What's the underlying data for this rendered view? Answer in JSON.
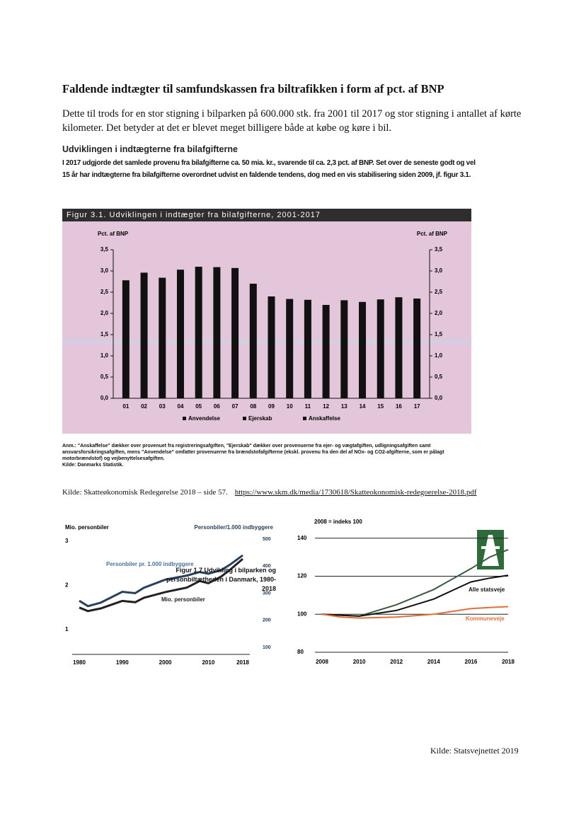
{
  "heading": "Faldende indtægter til samfundskassen fra biltrafikken i form af pct. af BNP",
  "intro": "Dette til trods for en stor stigning i bilparken på 600.000 stk. fra 2001 til 2017 og stor stigning i antallet af kørte kilometer. Det betyder at det er blevet meget billigere både at købe og køre i bil.",
  "subheading": "Udviklingen i indtægterne fra bilafgifterne",
  "body": "I 2017 udgjorde det samlede provenu fra bilafgifterne ca. 50 mia. kr., svarende til ca. 2,3 pct. af BNP. Set over de seneste godt og vel 15 år har indtægterne fra bilafgifterne overordnet udvist en faldende tendens, dog med en vis stabilisering siden 2009, jf. figur 3.1.",
  "figure_note": "Anm.: \"Anskaffelse\" dækker over provenuet fra registreringsafgiften, \"Ejerskab\" dækker over provenuerne fra ejer- og vægtafgiften, udligningsafgiften samt ansvarsforsikringsafgiften, mens \"Anvendelse\" omfatter provenuerne fra brændstofafgifterne (ekskl. provenu fra den del af NOx- og CO2-afgifterne, som er pålagt motorbrændstof) og vejbenyttelsesafgiften.",
  "figure_source": "Kilde: Danmarks Statistik.",
  "source_text": "Kilde: Skatteøkonomisk Redegørelse 2018 – side 57.",
  "source_url": "https://www.skm.dk/media/1730618/Skatteokonomisk-redegoerelse-2018.pdf",
  "caption": "Figur 1.7 Udvikling i bilparken og personbiltætheden i Danmark, 1980-2018",
  "source2": "Kilde: Statsvejnettet 2019",
  "chart_data": [
    {
      "type": "bar",
      "title": "Figur 3.1. Udviklingen i indtægter fra bilafgifterne, 2001-2017",
      "ylabel": "Pct. af BNP",
      "y2label": "Pct. af BNP",
      "categories": [
        "01",
        "02",
        "03",
        "04",
        "05",
        "06",
        "07",
        "08",
        "09",
        "10",
        "11",
        "12",
        "13",
        "14",
        "15",
        "16",
        "17"
      ],
      "values": [
        2.78,
        2.96,
        2.84,
        3.03,
        3.1,
        3.09,
        3.07,
        2.7,
        2.4,
        2.34,
        2.32,
        2.2,
        2.31,
        2.27,
        2.33,
        2.38,
        2.35
      ],
      "color": "#111111",
      "legend": [
        "Anvendelse",
        "Ejerskab",
        "Anskaffelse"
      ],
      "ylim": [
        0,
        3.5
      ],
      "yticks": [
        {
          "value": 0,
          "label": "0,0"
        },
        {
          "value": 0.5,
          "label": "0,5"
        },
        {
          "value": 1,
          "label": "1,0"
        },
        {
          "value": 1.5,
          "label": "1,5"
        },
        {
          "value": 2,
          "label": "2,0"
        },
        {
          "value": 2.5,
          "label": "2,5"
        },
        {
          "value": 3,
          "label": "3,0"
        },
        {
          "value": 3.5,
          "label": "3,5"
        }
      ]
    },
    {
      "type": "line",
      "ylabel": "Mio. personbiler",
      "y2label": "Personbiler/1.000 indbyggere",
      "x": [
        1980,
        1982,
        1985,
        1990,
        1993,
        1995,
        2000,
        2005,
        2008,
        2010,
        2013,
        2015,
        2018
      ],
      "series": [
        {
          "name": "Personbiler pr. 1.000 indbyggere",
          "color": "#27405e",
          "axis": "y2",
          "values": [
            272,
            252,
            265,
            305,
            300,
            320,
            350,
            365,
            378,
            372,
            385,
            405,
            440
          ]
        },
        {
          "name": "Mio. personbiler",
          "color": "#222222",
          "values": [
            1.5,
            1.42,
            1.48,
            1.65,
            1.62,
            1.72,
            1.85,
            1.95,
            2.1,
            2.05,
            2.2,
            2.35,
            2.6
          ]
        }
      ],
      "xlim": [
        1980,
        2018
      ],
      "xticks": [
        1980,
        1990,
        2000,
        2010,
        2018
      ],
      "ylim": [
        0.6,
        3.08
      ],
      "yticks": [
        1,
        2,
        3
      ],
      "y2lim": [
        100,
        505
      ],
      "y2ticks": [
        100,
        200,
        300,
        400,
        500
      ]
    },
    {
      "type": "line",
      "title": "2008 = indeks 100",
      "x": [
        2008,
        2009,
        2010,
        2012,
        2014,
        2016,
        2017,
        2018
      ],
      "series": [
        {
          "color": "#3a5a40",
          "values": [
            100,
            99.5,
            99,
            105,
            113,
            124,
            130,
            134
          ]
        },
        {
          "name": "Alle statsveje",
          "color": "#111111",
          "values": [
            100,
            99.5,
            99,
            102,
            108,
            117,
            119,
            120.5
          ]
        },
        {
          "name": "Kommuneveje",
          "color": "#e0703a",
          "values": [
            100,
            98.5,
            98,
            98.5,
            100,
            103,
            103.5,
            104
          ]
        }
      ],
      "xlim": [
        2008,
        2018
      ],
      "xticks": [
        2008,
        2010,
        2012,
        2014,
        2016,
        2018
      ],
      "ylim": [
        80,
        144
      ],
      "yticks": [
        80,
        100,
        120,
        140
      ],
      "grid": true
    }
  ]
}
